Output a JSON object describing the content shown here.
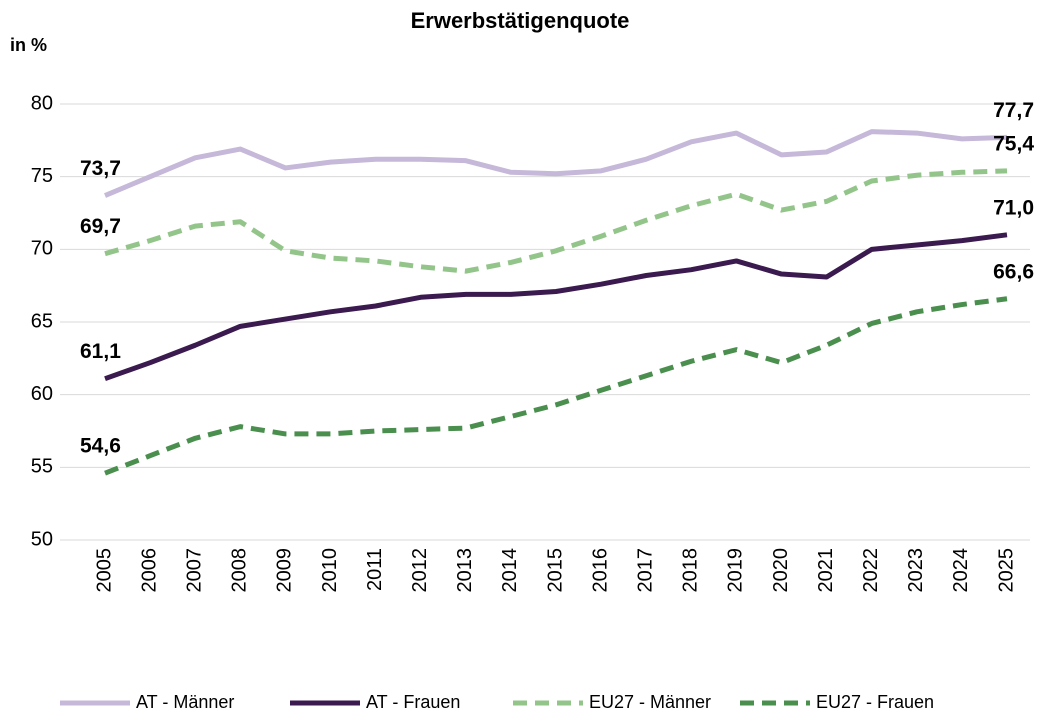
{
  "chart_data": {
    "type": "line",
    "title": "Erwerbstätigenquote",
    "y_label": "in %",
    "categories": [
      "2005",
      "2006",
      "2007",
      "2008",
      "2009",
      "2010",
      "2011",
      "2012",
      "2013",
      "2014",
      "2015",
      "2016",
      "2017",
      "2018",
      "2019",
      "2020",
      "2021",
      "2022",
      "2023",
      "2024",
      "2025"
    ],
    "ylim": [
      50,
      80
    ],
    "yticks": [
      50,
      55,
      60,
      65,
      70,
      75,
      80
    ],
    "grid": true,
    "legend": "bottom",
    "series": [
      {
        "name": "AT - Männer",
        "color": "#c5b8d9",
        "line_style": "solid",
        "values": [
          73.7,
          75.0,
          76.3,
          76.9,
          75.6,
          76.0,
          76.2,
          76.2,
          76.1,
          75.3,
          75.2,
          75.4,
          76.2,
          77.4,
          78.0,
          76.5,
          76.7,
          78.1,
          78.0,
          77.6,
          77.7
        ],
        "value_labels": [
          "73,7",
          null,
          null,
          null,
          null,
          null,
          null,
          null,
          null,
          null,
          null,
          null,
          null,
          null,
          null,
          null,
          null,
          null,
          null,
          null,
          "77,7"
        ]
      },
      {
        "name": "AT - Frauen",
        "color": "#3b1a4f",
        "line_style": "solid",
        "values": [
          61.1,
          62.2,
          63.4,
          64.7,
          65.2,
          65.7,
          66.1,
          66.7,
          66.9,
          66.9,
          67.1,
          67.6,
          68.2,
          68.6,
          69.2,
          68.3,
          68.1,
          70.0,
          70.3,
          70.6,
          71.0
        ],
        "value_labels": [
          "61,1",
          null,
          null,
          null,
          null,
          null,
          null,
          null,
          null,
          null,
          null,
          null,
          null,
          null,
          null,
          null,
          null,
          null,
          null,
          null,
          "71,0"
        ]
      },
      {
        "name": "EU27 - Männer",
        "color": "#93c58a",
        "line_style": "dashed",
        "values": [
          69.7,
          70.6,
          71.6,
          71.9,
          69.9,
          69.4,
          69.2,
          68.8,
          68.5,
          69.1,
          69.9,
          70.9,
          72.0,
          73.0,
          73.8,
          72.7,
          73.3,
          74.7,
          75.1,
          75.3,
          75.4
        ],
        "value_labels": [
          "69,7",
          null,
          null,
          null,
          null,
          null,
          null,
          null,
          null,
          null,
          null,
          null,
          null,
          null,
          null,
          null,
          null,
          null,
          null,
          null,
          "75,4"
        ]
      },
      {
        "name": "EU27 - Frauen",
        "color": "#4a8f4e",
        "line_style": "dashed",
        "values": [
          54.6,
          55.8,
          57.0,
          57.8,
          57.3,
          57.3,
          57.5,
          57.6,
          57.7,
          58.5,
          59.3,
          60.3,
          61.3,
          62.3,
          63.1,
          62.2,
          63.4,
          64.9,
          65.7,
          66.2,
          66.6
        ],
        "value_labels": [
          "54,6",
          null,
          null,
          null,
          null,
          null,
          null,
          null,
          null,
          null,
          null,
          null,
          null,
          null,
          null,
          null,
          null,
          null,
          null,
          null,
          "66,6"
        ]
      }
    ]
  }
}
